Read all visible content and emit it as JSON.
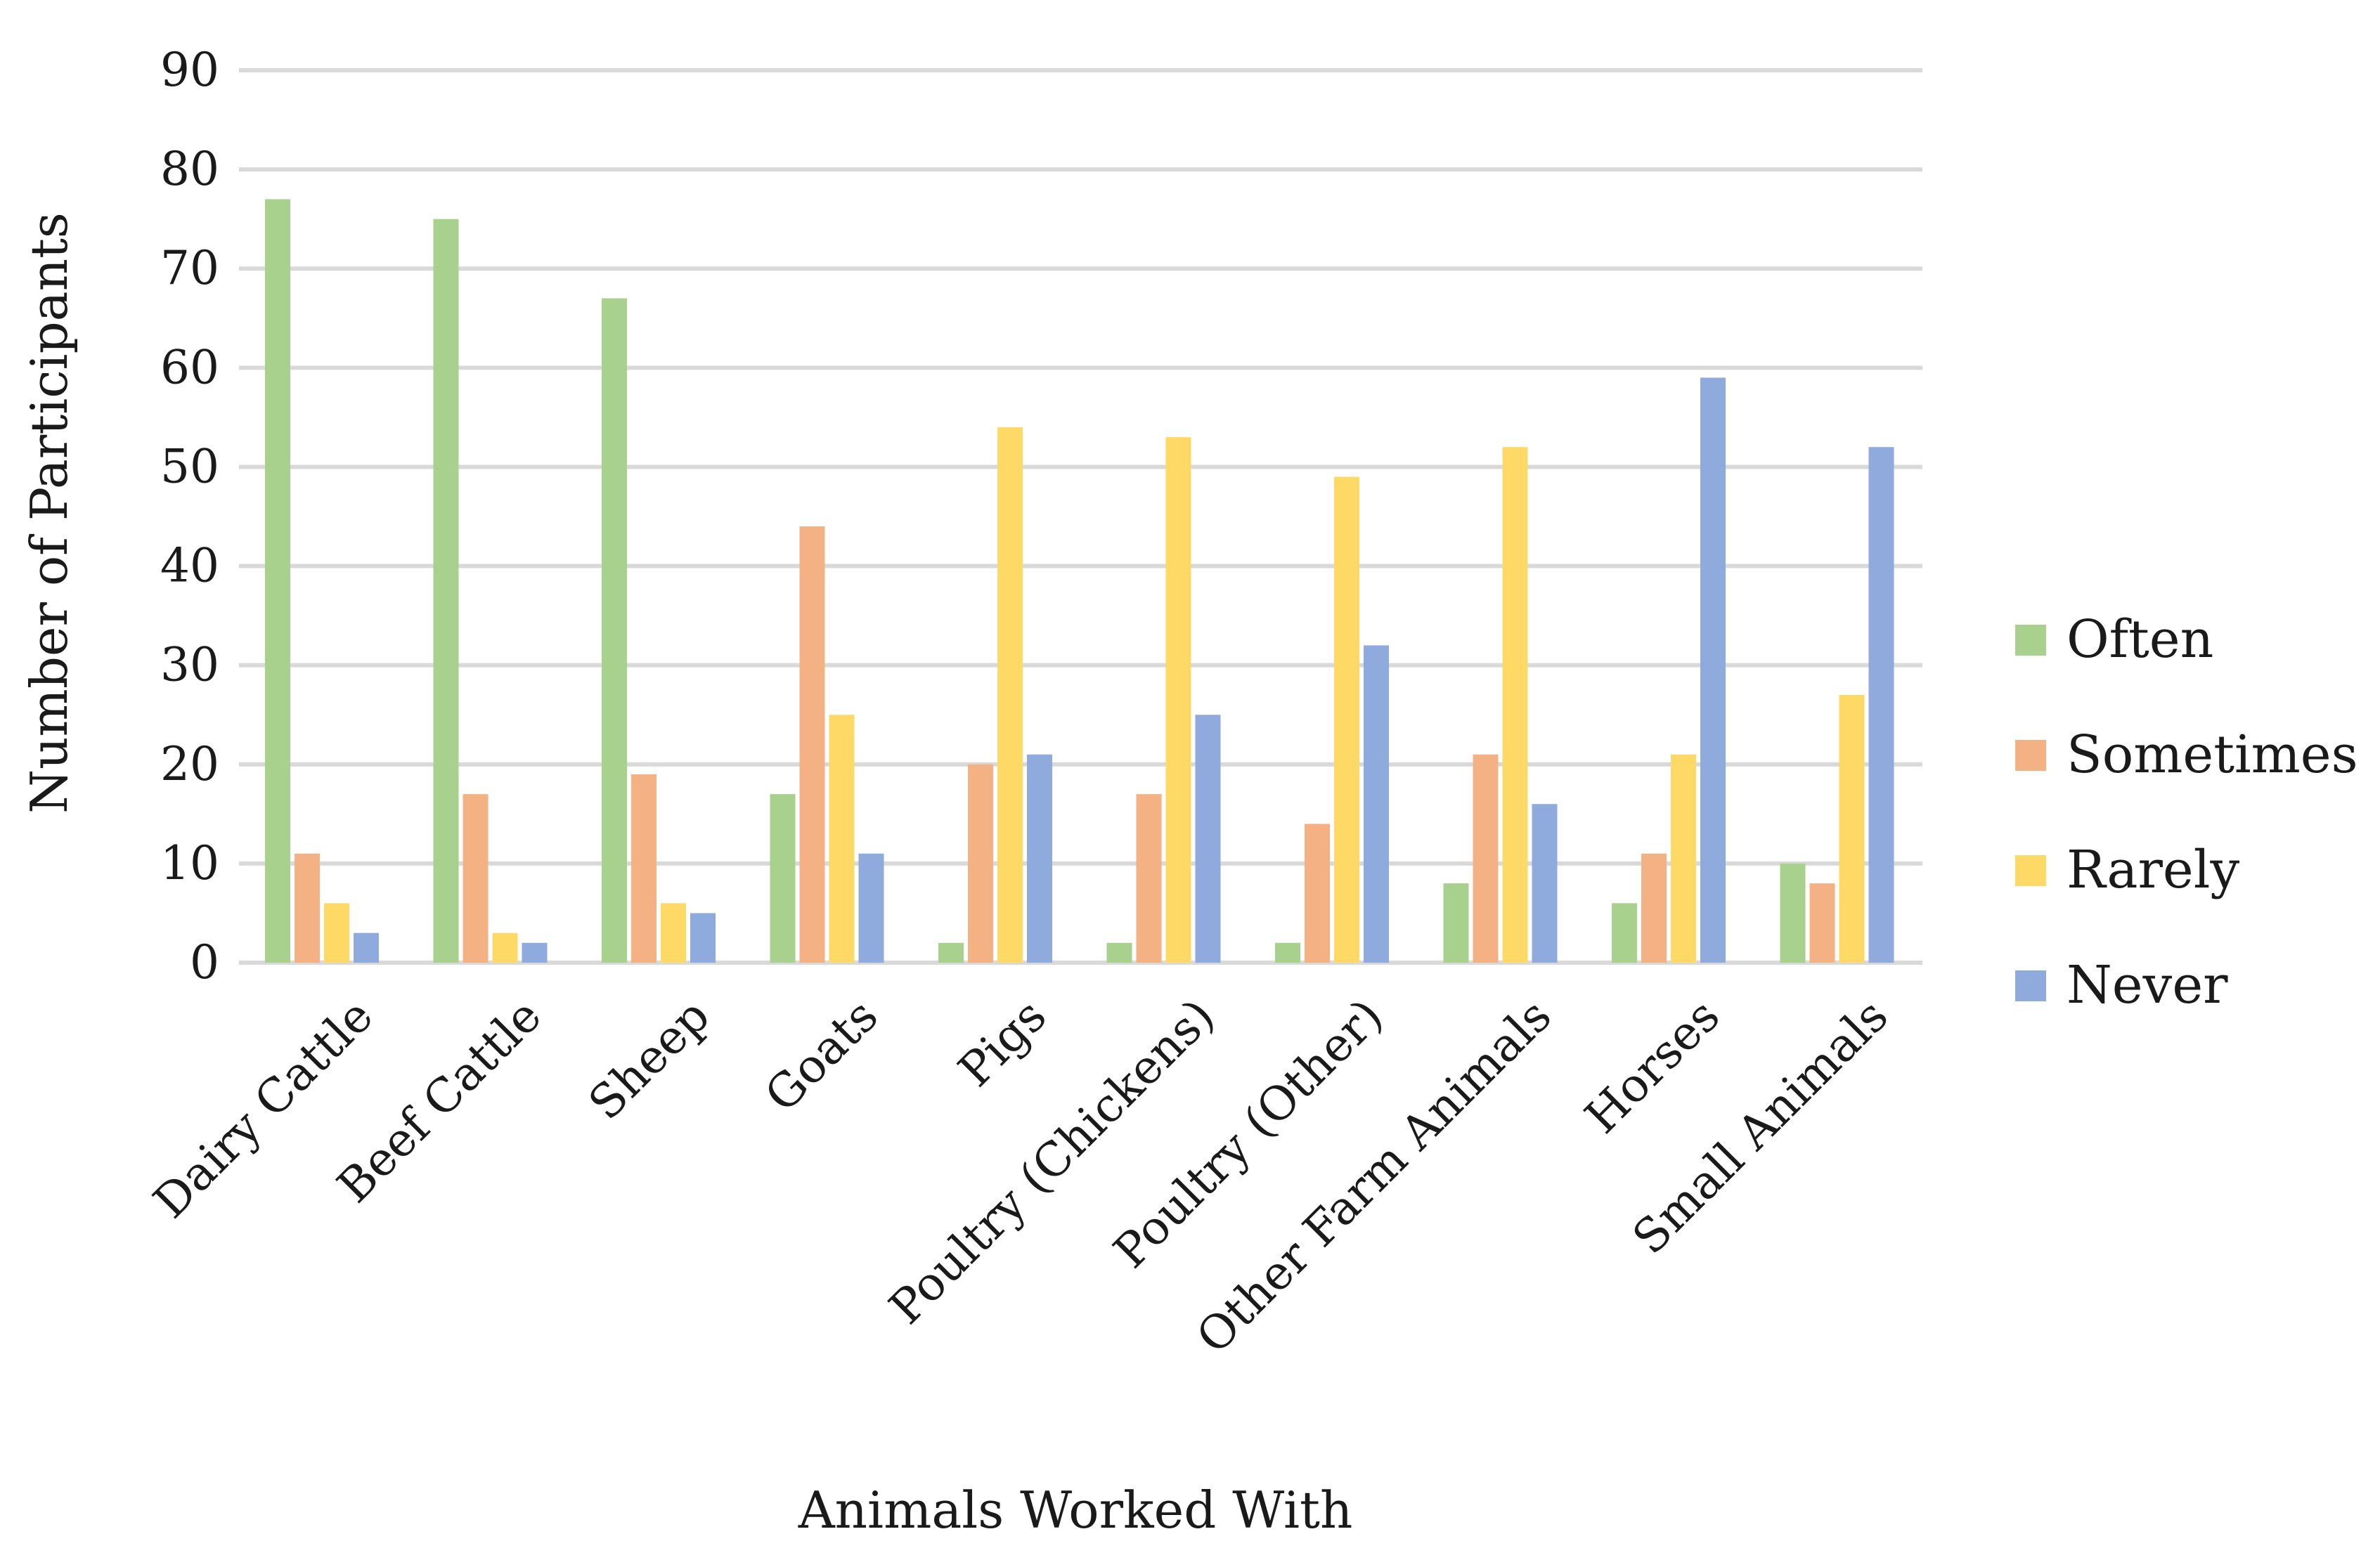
{
  "chart_data": {
    "type": "bar",
    "title": "",
    "xlabel": "Animals Worked With",
    "ylabel": "Number of Participants",
    "ylim": [
      0,
      90
    ],
    "yticks": [
      0,
      10,
      20,
      30,
      40,
      50,
      60,
      70,
      80,
      90
    ],
    "grid": true,
    "legend_position": "right",
    "categories": [
      "Dairy Cattle",
      "Beef Cattle",
      "Sheep",
      "Goats",
      "Pigs",
      "Poultry (Chickens)",
      "Poultry (Other)",
      "Other Farm Animals",
      "Horses",
      "Small Animals"
    ],
    "series": [
      {
        "name": "Often",
        "color": "#a9d18e",
        "values": [
          77,
          75,
          67,
          17,
          2,
          2,
          2,
          8,
          6,
          10
        ]
      },
      {
        "name": "Sometimes",
        "color": "#f4b183",
        "values": [
          11,
          17,
          19,
          44,
          20,
          17,
          14,
          21,
          11,
          8
        ]
      },
      {
        "name": "Rarely",
        "color": "#ffd966",
        "values": [
          6,
          3,
          6,
          25,
          54,
          53,
          49,
          52,
          21,
          27
        ]
      },
      {
        "name": "Never",
        "color": "#8faadc",
        "values": [
          3,
          2,
          5,
          11,
          21,
          25,
          32,
          16,
          59,
          52
        ]
      }
    ]
  }
}
